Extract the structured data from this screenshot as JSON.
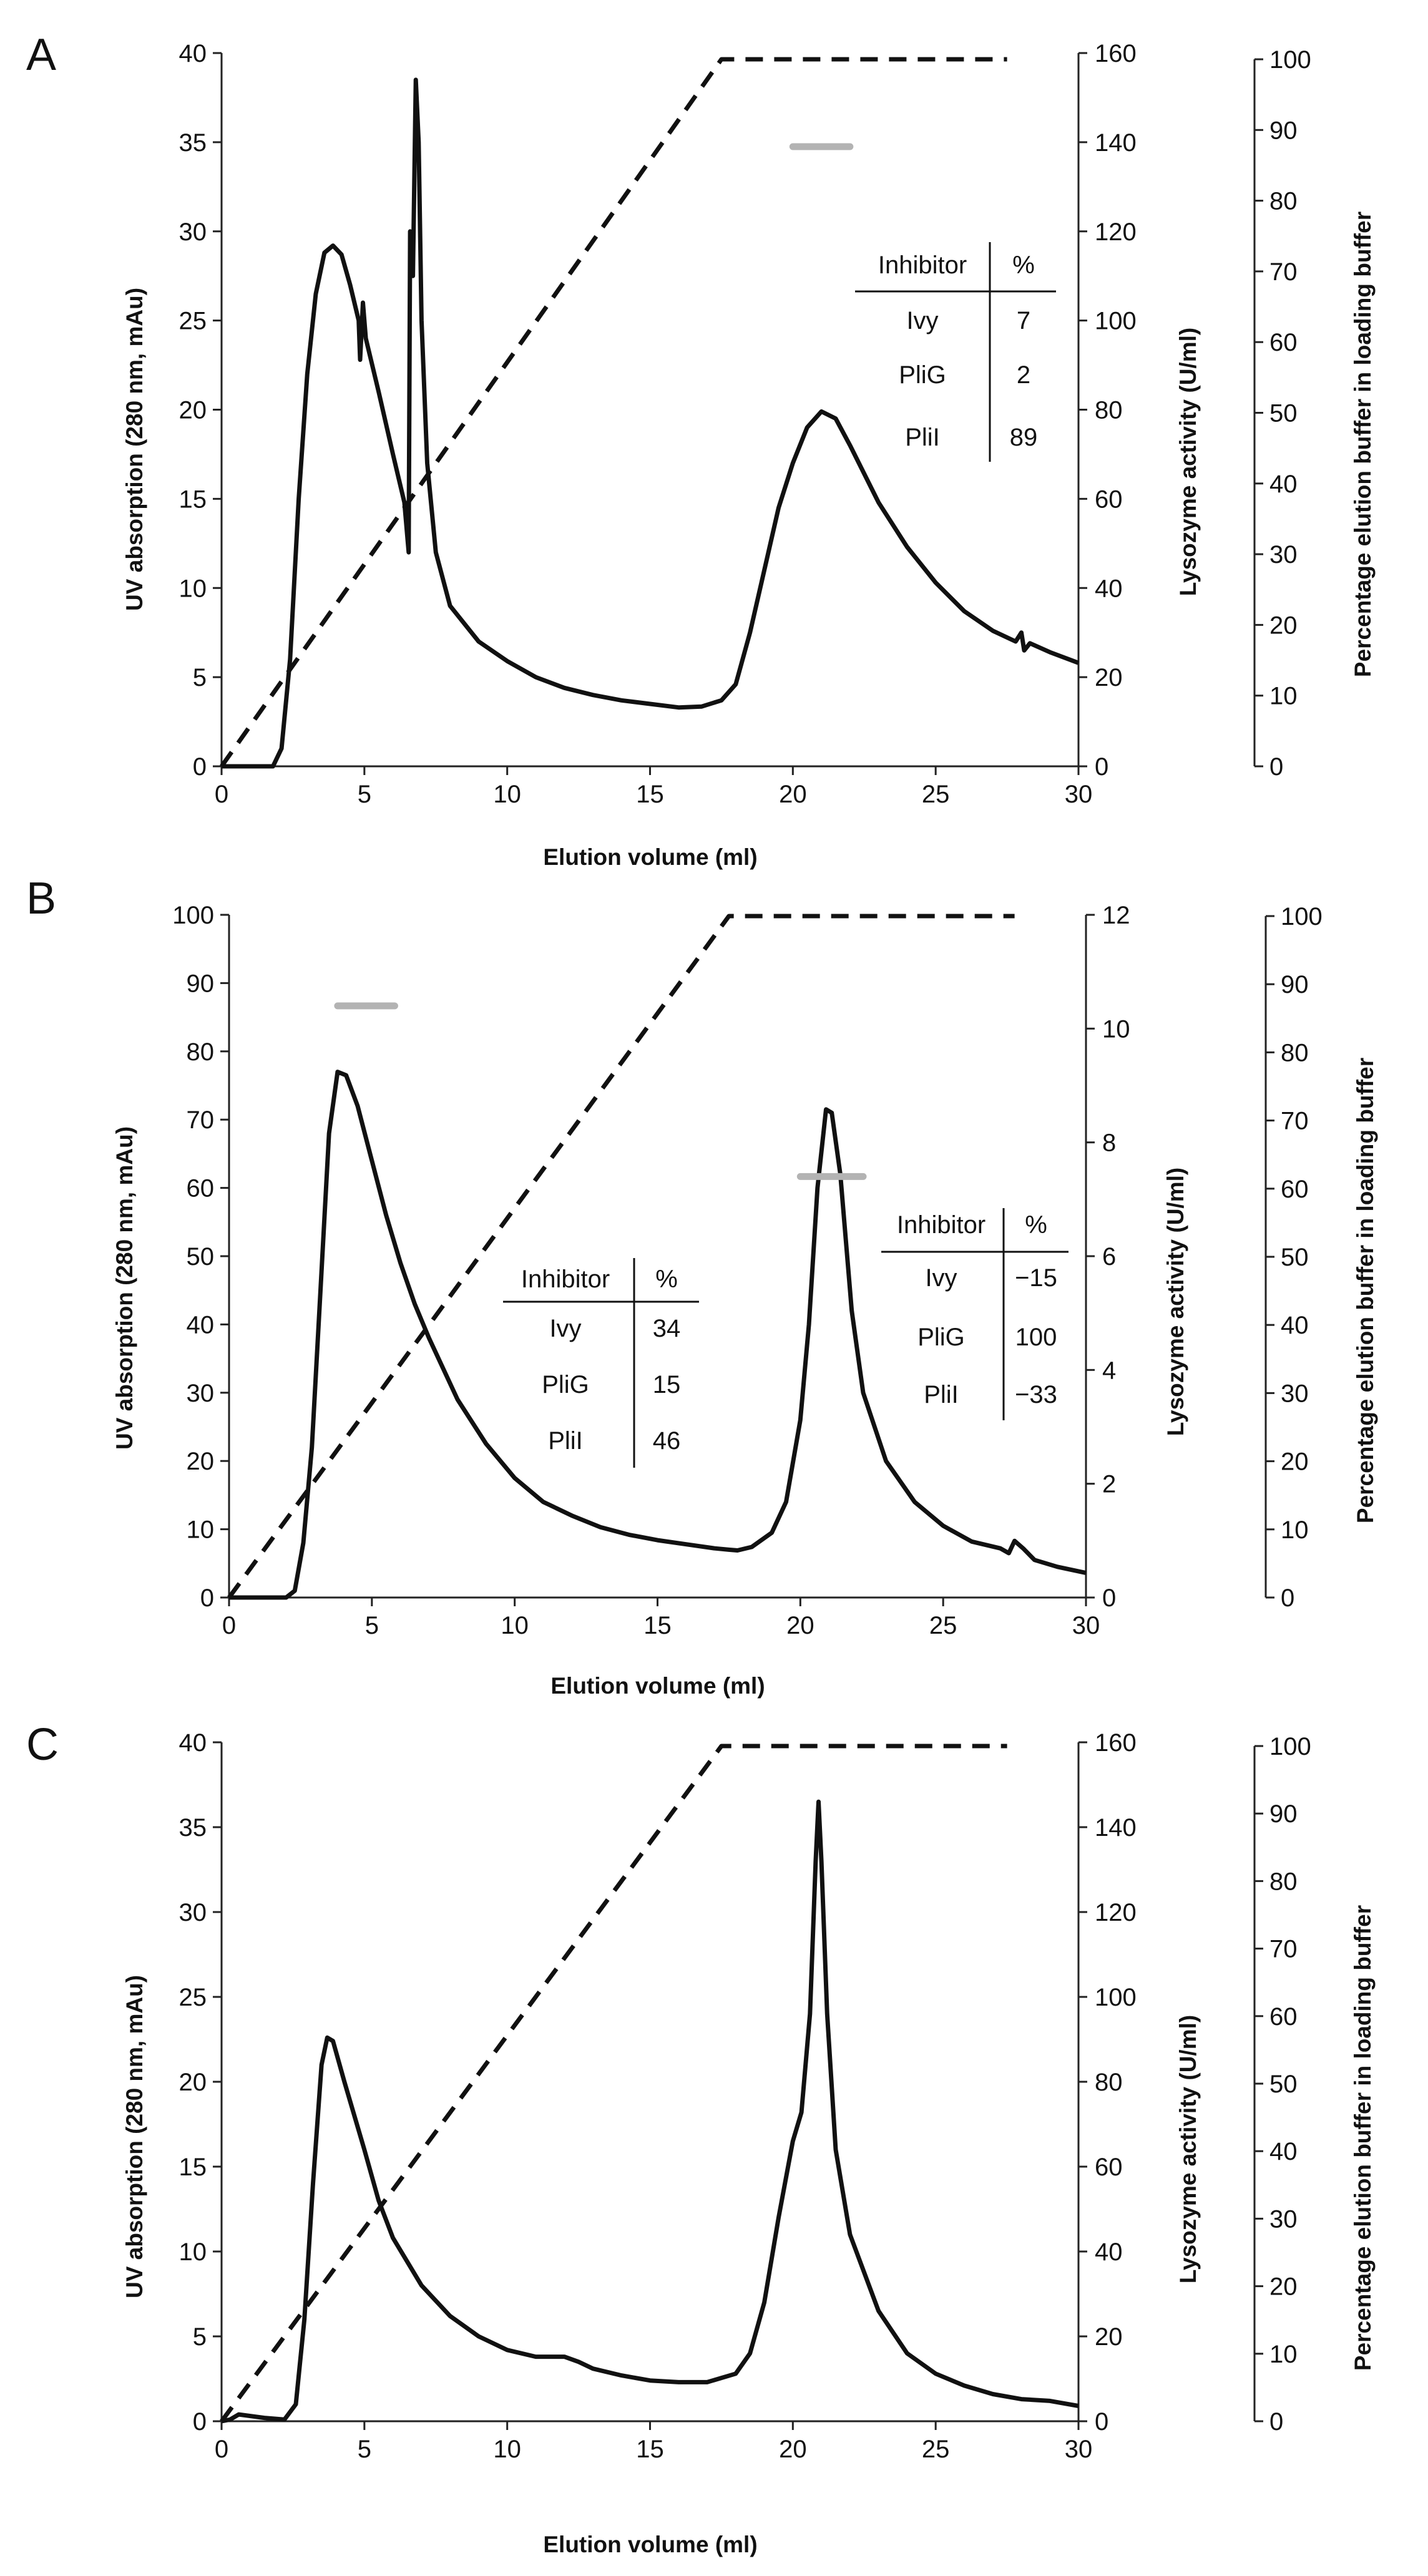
{
  "chart_data": [
    {
      "panel_label": "A",
      "type": "line",
      "xlabel": "Elution volume (ml)",
      "xlim": [
        0,
        30
      ],
      "x_ticks": [
        0,
        5,
        10,
        15,
        20,
        25,
        30
      ],
      "ylabel_left": "UV absorption (280 nm, mAu)",
      "ylim_left": [
        0,
        40
      ],
      "y_ticks_left": [
        0,
        5,
        10,
        15,
        20,
        25,
        30,
        35,
        40
      ],
      "ylabel_right": "Lysozyme activity (U/ml)",
      "ylim_right": [
        0,
        160
      ],
      "y_ticks_right": [
        0,
        20,
        40,
        60,
        80,
        100,
        120,
        140,
        160
      ],
      "ylabel_right2": "Percentage elution buffer in loading buffer",
      "ylim_right2": [
        0,
        100
      ],
      "y_ticks_right2": [
        0,
        10,
        20,
        30,
        40,
        50,
        60,
        70,
        80,
        90,
        100
      ],
      "grid": false,
      "series": [
        {
          "style": "solid",
          "color": "#111111",
          "axis": "left",
          "points": [
            [
              0,
              0
            ],
            [
              1,
              0
            ],
            [
              1.8,
              0
            ],
            [
              2.1,
              1
            ],
            [
              2.4,
              6
            ],
            [
              2.7,
              15
            ],
            [
              3,
              22
            ],
            [
              3.3,
              26.5
            ],
            [
              3.6,
              28.8
            ],
            [
              3.9,
              29.2
            ],
            [
              4.2,
              28.7
            ],
            [
              4.5,
              27
            ],
            [
              4.8,
              25
            ],
            [
              4.85,
              22.8
            ],
            [
              4.95,
              26
            ],
            [
              5.05,
              24
            ],
            [
              5.5,
              21
            ],
            [
              6,
              17.5
            ],
            [
              6.4,
              14.8
            ],
            [
              6.55,
              12
            ],
            [
              6.6,
              30
            ],
            [
              6.7,
              27.5
            ],
            [
              6.8,
              38.5
            ],
            [
              6.9,
              35
            ],
            [
              7.0,
              25
            ],
            [
              7.2,
              17
            ],
            [
              7.5,
              12
            ],
            [
              8,
              9
            ],
            [
              9,
              7
            ],
            [
              10,
              5.9
            ],
            [
              11,
              5
            ],
            [
              12,
              4.4
            ],
            [
              13,
              4
            ],
            [
              14,
              3.7
            ],
            [
              15,
              3.5
            ],
            [
              16,
              3.3
            ],
            [
              16.8,
              3.35
            ],
            [
              17.5,
              3.7
            ],
            [
              18,
              4.6
            ],
            [
              18.5,
              7.5
            ],
            [
              19,
              11
            ],
            [
              19.5,
              14.5
            ],
            [
              20,
              17
            ],
            [
              20.5,
              19
            ],
            [
              21,
              19.9
            ],
            [
              21.5,
              19.5
            ],
            [
              22,
              18
            ],
            [
              23,
              14.8
            ],
            [
              24,
              12.3
            ],
            [
              25,
              10.3
            ],
            [
              26,
              8.7
            ],
            [
              27,
              7.6
            ],
            [
              27.8,
              7
            ],
            [
              28,
              7.5
            ],
            [
              28.1,
              6.5
            ],
            [
              28.3,
              6.9
            ],
            [
              29,
              6.4
            ],
            [
              30,
              5.8
            ]
          ]
        },
        {
          "style": "dashed",
          "color": "#111111",
          "axis": "right2",
          "points": [
            [
              0,
              0
            ],
            [
              17.5,
              100
            ],
            [
              27.5,
              100
            ]
          ]
        },
        {
          "style": "bar",
          "color": "#b3b3b3",
          "axis": "right",
          "points": [
            [
              20,
              139
            ],
            [
              22,
              139
            ]
          ]
        }
      ],
      "inset_table": {
        "headers": [
          "Inhibitor",
          "%"
        ],
        "rows": [
          [
            "Ivy",
            "7"
          ],
          [
            "PliG",
            "2"
          ],
          [
            "PliI",
            "89"
          ]
        ]
      }
    },
    {
      "panel_label": "B",
      "type": "line",
      "xlabel": "Elution volume (ml)",
      "xlim": [
        0,
        30
      ],
      "x_ticks": [
        0,
        5,
        10,
        15,
        20,
        25,
        30
      ],
      "ylabel_left": "UV absorption (280 nm, mAu)",
      "ylim_left": [
        0,
        100
      ],
      "y_ticks_left": [
        0,
        10,
        20,
        30,
        40,
        50,
        60,
        70,
        80,
        90,
        100
      ],
      "ylabel_right": "Lysozyme activity (U/ml)",
      "ylim_right": [
        0,
        12
      ],
      "y_ticks_right": [
        0,
        2,
        4,
        6,
        8,
        10,
        12
      ],
      "ylabel_right2": "Percentage elution buffer in loading buffer",
      "ylim_right2": [
        0,
        100
      ],
      "y_ticks_right2": [
        0,
        10,
        20,
        30,
        40,
        50,
        60,
        70,
        80,
        90,
        100
      ],
      "grid": false,
      "series": [
        {
          "style": "solid",
          "color": "#111111",
          "axis": "left",
          "points": [
            [
              0,
              0
            ],
            [
              2,
              0
            ],
            [
              2.3,
              1
            ],
            [
              2.6,
              8
            ],
            [
              2.9,
              22
            ],
            [
              3.2,
              45
            ],
            [
              3.5,
              68
            ],
            [
              3.8,
              77
            ],
            [
              4.1,
              76.5
            ],
            [
              4.5,
              72
            ],
            [
              5,
              64
            ],
            [
              5.5,
              56
            ],
            [
              6,
              49
            ],
            [
              6.5,
              43
            ],
            [
              7,
              38
            ],
            [
              8,
              29
            ],
            [
              9,
              22.5
            ],
            [
              10,
              17.5
            ],
            [
              11,
              14
            ],
            [
              12,
              12
            ],
            [
              13,
              10.3
            ],
            [
              14,
              9.2
            ],
            [
              15,
              8.4
            ],
            [
              16,
              7.8
            ],
            [
              17,
              7.2
            ],
            [
              17.5,
              7
            ],
            [
              17.8,
              6.9
            ],
            [
              18.3,
              7.4
            ],
            [
              19,
              9.5
            ],
            [
              19.5,
              14
            ],
            [
              20,
              26
            ],
            [
              20.3,
              40
            ],
            [
              20.6,
              60
            ],
            [
              20.9,
              71.5
            ],
            [
              21.1,
              71
            ],
            [
              21.4,
              62
            ],
            [
              21.8,
              42
            ],
            [
              22.2,
              30
            ],
            [
              23,
              20
            ],
            [
              24,
              14
            ],
            [
              25,
              10.5
            ],
            [
              26,
              8.2
            ],
            [
              27,
              7.2
            ],
            [
              27.3,
              6.5
            ],
            [
              27.5,
              8.3
            ],
            [
              27.8,
              7.2
            ],
            [
              28.2,
              5.5
            ],
            [
              29,
              4.5
            ],
            [
              30,
              3.6
            ]
          ]
        },
        {
          "style": "dashed",
          "color": "#111111",
          "axis": "right2",
          "points": [
            [
              0,
              0
            ],
            [
              17.5,
              100
            ],
            [
              27.5,
              100
            ]
          ]
        },
        {
          "style": "bar",
          "color": "#b3b3b3",
          "axis": "right",
          "points": [
            [
              3.8,
              10.4
            ],
            [
              5.8,
              10.4
            ]
          ]
        },
        {
          "style": "bar",
          "color": "#b3b3b3",
          "axis": "right",
          "points": [
            [
              20,
              7.4
            ],
            [
              22.2,
              7.4
            ]
          ]
        }
      ],
      "inset_tables": [
        {
          "headers": [
            "Inhibitor",
            "%"
          ],
          "rows": [
            [
              "Ivy",
              "34"
            ],
            [
              "PliG",
              "15"
            ],
            [
              "PliI",
              "46"
            ]
          ]
        },
        {
          "headers": [
            "Inhibitor",
            "%"
          ],
          "rows": [
            [
              "Ivy",
              "−15"
            ],
            [
              "PliG",
              "100"
            ],
            [
              "PliI",
              "−33"
            ]
          ]
        }
      ]
    },
    {
      "panel_label": "C",
      "type": "line",
      "xlabel": "Elution volume (ml)",
      "xlim": [
        0,
        30
      ],
      "x_ticks": [
        0,
        5,
        10,
        15,
        20,
        25,
        30
      ],
      "ylabel_left": "UV absorption (280 nm, mAu)",
      "ylim_left": [
        0,
        40
      ],
      "y_ticks_left": [
        0,
        5,
        10,
        15,
        20,
        25,
        30,
        35,
        40
      ],
      "ylabel_right": "Lysozyme activity (U/ml)",
      "ylim_right": [
        0,
        160
      ],
      "y_ticks_right": [
        0,
        20,
        40,
        60,
        80,
        100,
        120,
        140,
        160
      ],
      "ylabel_right2": "Percentage elution buffer in loading buffer",
      "ylim_right2": [
        0,
        100
      ],
      "y_ticks_right2": [
        0,
        10,
        20,
        30,
        40,
        50,
        60,
        70,
        80,
        90,
        100
      ],
      "grid": false,
      "series": [
        {
          "style": "solid",
          "color": "#111111",
          "axis": "left",
          "points": [
            [
              0,
              0
            ],
            [
              0.3,
              0.1
            ],
            [
              0.6,
              0.4
            ],
            [
              1.5,
              0.2
            ],
            [
              2.2,
              0.1
            ],
            [
              2.6,
              1
            ],
            [
              2.9,
              6
            ],
            [
              3.2,
              14
            ],
            [
              3.5,
              21
            ],
            [
              3.7,
              22.6
            ],
            [
              3.9,
              22.4
            ],
            [
              4.3,
              20
            ],
            [
              5,
              16
            ],
            [
              5.5,
              13
            ],
            [
              6,
              10.8
            ],
            [
              7,
              8
            ],
            [
              8,
              6.2
            ],
            [
              9,
              5
            ],
            [
              10,
              4.2
            ],
            [
              11,
              3.8
            ],
            [
              12,
              3.8
            ],
            [
              12.5,
              3.5
            ],
            [
              13,
              3.1
            ],
            [
              14,
              2.7
            ],
            [
              15,
              2.4
            ],
            [
              16,
              2.3
            ],
            [
              17,
              2.3
            ],
            [
              18,
              2.8
            ],
            [
              18.5,
              4
            ],
            [
              19,
              7
            ],
            [
              19.5,
              12
            ],
            [
              20,
              16.5
            ],
            [
              20.3,
              18.2
            ],
            [
              20.6,
              24
            ],
            [
              20.8,
              33
            ],
            [
              20.9,
              36.5
            ],
            [
              21,
              33
            ],
            [
              21.2,
              24
            ],
            [
              21.5,
              16
            ],
            [
              22,
              11
            ],
            [
              23,
              6.5
            ],
            [
              24,
              4
            ],
            [
              25,
              2.8
            ],
            [
              26,
              2.1
            ],
            [
              27,
              1.6
            ],
            [
              28,
              1.3
            ],
            [
              29,
              1.2
            ],
            [
              30,
              0.9
            ]
          ]
        },
        {
          "style": "dashed",
          "color": "#111111",
          "axis": "right2",
          "points": [
            [
              0,
              0
            ],
            [
              17.5,
              100
            ],
            [
              27.5,
              100
            ]
          ]
        }
      ]
    }
  ]
}
